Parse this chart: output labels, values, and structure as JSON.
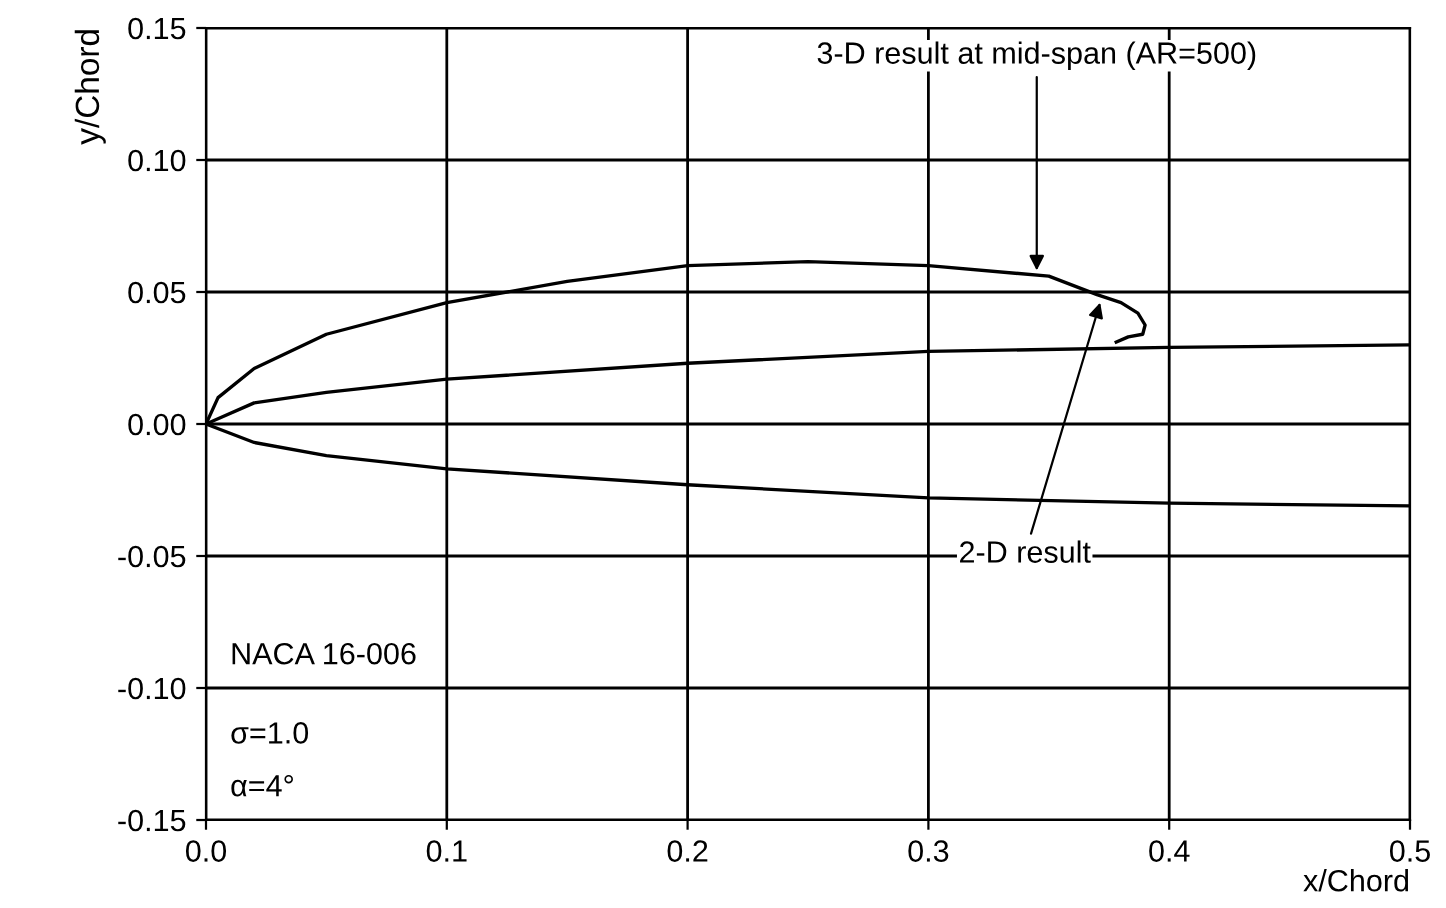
{
  "chart_data": {
    "type": "line",
    "xlabel": "x/Chord",
    "ylabel": "y/Chord",
    "xlim": [
      0,
      0.5
    ],
    "ylim": [
      -0.15,
      0.15
    ],
    "xticks": [
      {
        "value": 0,
        "label": "0.0"
      },
      0.1,
      0.2,
      0.3,
      0.4,
      0.5
    ],
    "yticks": [
      {
        "value": -0.15,
        "label": "-0.15"
      },
      {
        "value": -0.1,
        "label": "-0.10"
      },
      {
        "value": -0.05,
        "label": "-0.05"
      },
      {
        "value": 0,
        "label": "0.00"
      },
      {
        "value": 0.05,
        "label": "0.05"
      },
      {
        "value": 0.1,
        "label": "0.10"
      },
      {
        "value": 0.15,
        "label": "0.15"
      }
    ],
    "grid": true,
    "legend": false,
    "marker": "none",
    "line_style": "solid",
    "series": [
      {
        "color": "#000000",
        "x": [
          0,
          0.005,
          0.02,
          0.05,
          0.1,
          0.15,
          0.2,
          0.25,
          0.3,
          0.35,
          0.37,
          0.38,
          0.387,
          0.39,
          0.389,
          0.383,
          0.378
        ],
        "values": [
          0,
          0.01,
          0.021,
          0.034,
          0.046,
          0.054,
          0.06,
          0.0615,
          0.06,
          0.056,
          0.049,
          0.046,
          0.042,
          0.0375,
          0.034,
          0.033,
          0.031
        ]
      },
      {
        "color": "#000000",
        "x": [
          0,
          0.02,
          0.05,
          0.1,
          0.2,
          0.3,
          0.4,
          0.5
        ],
        "values": [
          0,
          0.008,
          0.012,
          0.017,
          0.023,
          0.0275,
          0.029,
          0.03
        ]
      },
      {
        "color": "#000000",
        "x": [
          0,
          0.02,
          0.05,
          0.1,
          0.2,
          0.3,
          0.4,
          0.5
        ],
        "values": [
          0,
          -0.007,
          -0.012,
          -0.017,
          -0.023,
          -0.028,
          -0.03,
          -0.031
        ]
      }
    ],
    "annotations": [
      {
        "text": "3-D result at mid-span (AR=500)",
        "x": 0.345,
        "y": 0.056
      },
      {
        "text": "2-D result",
        "x": 0.372,
        "y": 0.048
      },
      "NACA 16-006",
      "σ=1.0",
      "α=4°"
    ]
  }
}
